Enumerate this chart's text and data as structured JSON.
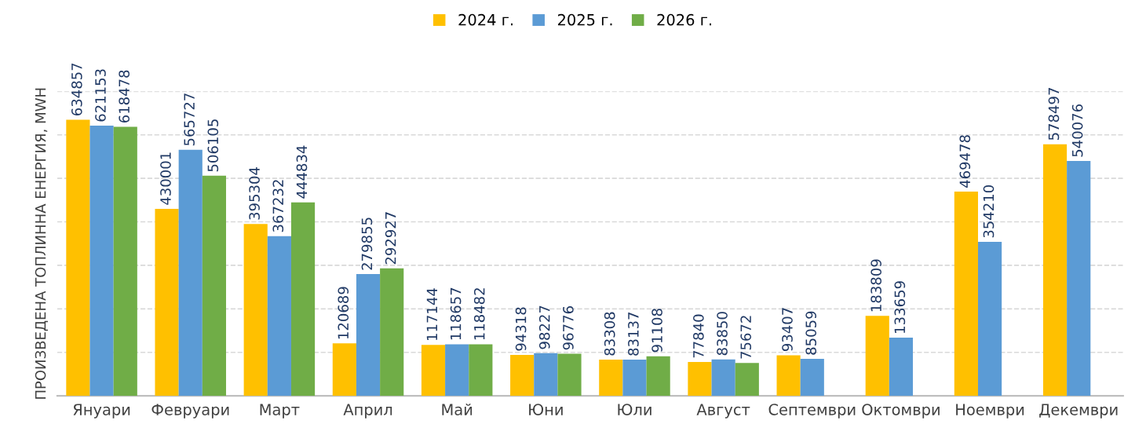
{
  "chart_data": {
    "type": "bar",
    "ylabel": "ПРОИЗВЕДЕНА ТОПЛИННА ЕНЕРГИЯ, MWH",
    "categories": [
      "Януари",
      "Февруари",
      "Март",
      "Април",
      "Май",
      "Юни",
      "Юли",
      "Август",
      "Септември",
      "Октомври",
      "Ноември",
      "Декември"
    ],
    "series": [
      {
        "name": "2024 г.",
        "color": "#ffc000",
        "values": [
          634857,
          430001,
          395304,
          120689,
          117144,
          94318,
          83308,
          77840,
          93407,
          183809,
          469478,
          578497
        ]
      },
      {
        "name": "2025 г.",
        "color": "#5b9bd5",
        "values": [
          621153,
          565727,
          367232,
          279855,
          118657,
          98227,
          83137,
          83850,
          85059,
          133659,
          354210,
          540076
        ]
      },
      {
        "name": "2026 г.",
        "color": "#70ad47",
        "values": [
          618478,
          506105,
          444834,
          292927,
          118482,
          96776,
          91108,
          75672,
          null,
          null,
          null,
          null
        ]
      }
    ],
    "ylim": [
      0,
      700000
    ],
    "yticks": [
      {
        "value": 0,
        "label": null
      },
      {
        "value": 100000,
        "label": null
      },
      {
        "value": 200000,
        "label": null
      },
      {
        "value": 300000,
        "label": null
      },
      {
        "value": 400000,
        "label": null
      },
      {
        "value": 500000,
        "label": null
      },
      {
        "value": 600000,
        "label": null
      },
      {
        "value": 700000,
        "label": null
      }
    ],
    "tick_labels": "x",
    "grid": "y",
    "legend": "top",
    "data_labels": true
  }
}
